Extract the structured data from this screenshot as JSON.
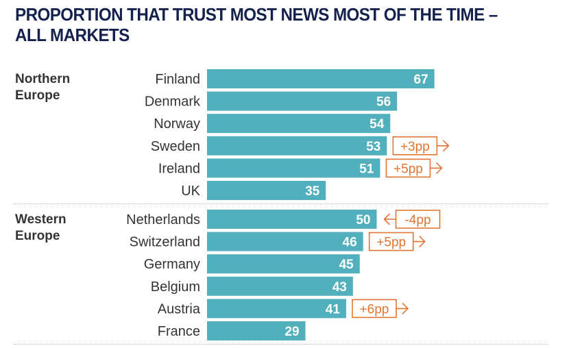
{
  "title": "PROPORTION THAT TRUST MOST NEWS MOST OF THE TIME – ALL MARKETS",
  "colors": {
    "bar": "#51b0bc",
    "title": "#14214d",
    "text": "#333333",
    "change": "#e07432"
  },
  "chart_data": {
    "type": "bar",
    "orientation": "horizontal",
    "title": "PROPORTION THAT TRUST MOST NEWS MOST OF THE TIME – ALL MARKETS",
    "xlabel": "",
    "ylabel": "",
    "unit": "%",
    "xlim": [
      0,
      100
    ],
    "grid": false,
    "groups": [
      {
        "name": "Northern Europe",
        "categories": [
          "Finland",
          "Denmark",
          "Norway",
          "Sweden",
          "Ireland",
          "UK"
        ],
        "values": [
          67,
          56,
          54,
          53,
          51,
          35
        ],
        "changes": [
          null,
          null,
          null,
          "+3pp",
          "+5pp",
          null
        ]
      },
      {
        "name": "Western Europe",
        "categories": [
          "Netherlands",
          "Switzerland",
          "Germany",
          "Belgium",
          "Austria",
          "France"
        ],
        "values": [
          50,
          46,
          45,
          43,
          41,
          29
        ],
        "changes": [
          "-4pp",
          "+5pp",
          null,
          null,
          "+6pp",
          null
        ]
      }
    ]
  }
}
